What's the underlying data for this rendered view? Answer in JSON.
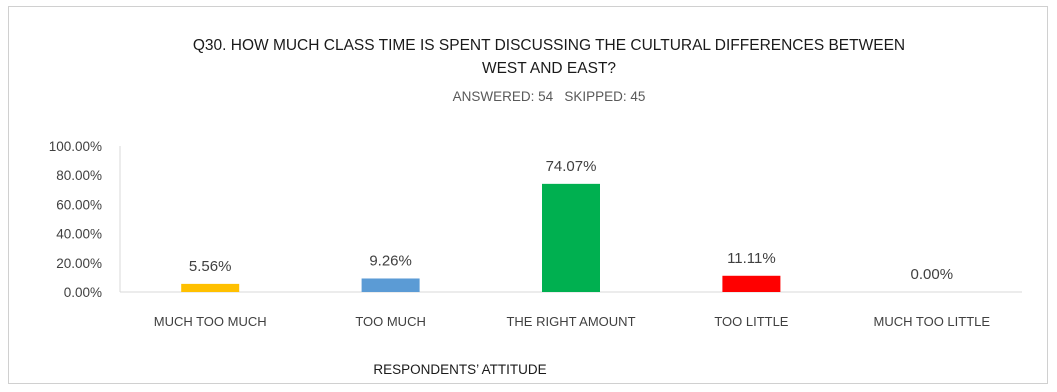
{
  "chart_data": {
    "type": "bar",
    "title_lines": [
      "Q30. HOW MUCH CLASS TIME IS SPENT DISCUSSING THE CULTURAL DIFFERENCES BETWEEN",
      "WEST AND EAST?"
    ],
    "subtitle": "ANSWERED: 54   SKIPPED: 45",
    "xlabel": "RESPONDENTS’ ATTITUDE",
    "categories": [
      "MUCH TOO MUCH",
      "TOO MUCH",
      "THE RIGHT AMOUNT",
      "TOO LITTLE",
      "MUCH TOO LITTLE"
    ],
    "values": [
      5.56,
      9.26,
      74.07,
      11.11,
      0.0
    ],
    "data_labels": [
      "5.56%",
      "9.26%",
      "74.07%",
      "11.11%",
      "0.00%"
    ],
    "colors": [
      "#ffc000",
      "#5b9bd5",
      "#00b050",
      "#ff0000",
      "#a5a5a5"
    ],
    "ylim": [
      0,
      100
    ],
    "yticks": [
      0,
      20,
      40,
      60,
      80,
      100
    ],
    "ytick_labels": [
      "0.00%",
      "20.00%",
      "40.00%",
      "60.00%",
      "80.00%",
      "100.00%"
    ],
    "grid": false,
    "legend": "none"
  }
}
